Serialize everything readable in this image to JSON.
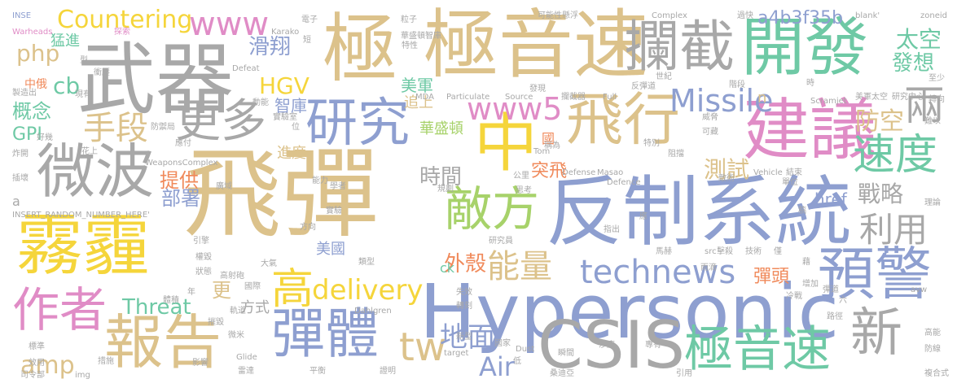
{
  "palette": {
    "tan": "#dcc28b",
    "gray": "#a8a8a8",
    "blue": "#8e9fd0",
    "green": "#a7d26a",
    "orange": "#f08a5b",
    "pink": "#e08cc6",
    "teal": "#6ec9a5",
    "yellow": "#f5d53b"
  },
  "words": [
    {
      "text": "飛彈",
      "color": "tan"
    },
    {
      "text": "極音速",
      "color": "tan"
    },
    {
      "text": "武器",
      "color": "gray"
    },
    {
      "text": "反制系統",
      "color": "blue"
    },
    {
      "text": "Hypersonic",
      "color": "blue"
    },
    {
      "text": "霧霾",
      "color": "yellow"
    },
    {
      "text": "開發",
      "color": "teal"
    },
    {
      "text": "極",
      "color": "tan"
    },
    {
      "text": "攔截",
      "color": "gray"
    },
    {
      "text": "建議",
      "color": "pink"
    },
    {
      "text": "微波",
      "color": "gray"
    },
    {
      "text": "飛行",
      "color": "tan"
    },
    {
      "text": "研究",
      "color": "blue"
    },
    {
      "text": "更多",
      "color": "gray"
    },
    {
      "text": "中",
      "color": "yellow"
    },
    {
      "text": "報告",
      "color": "tan"
    },
    {
      "text": "預警",
      "color": "blue"
    },
    {
      "text": "CSIS",
      "color": "gray"
    },
    {
      "text": "彈體",
      "color": "blue"
    },
    {
      "text": "新",
      "color": "gray"
    },
    {
      "text": "敵方",
      "color": "green"
    },
    {
      "text": "速度",
      "color": "teal"
    },
    {
      "text": "極音速",
      "color": "teal"
    },
    {
      "text": "technews",
      "color": "blue"
    },
    {
      "text": "能量",
      "color": "tan"
    },
    {
      "text": "作者",
      "color": "pink"
    },
    {
      "text": "www5",
      "color": "pink"
    },
    {
      "text": "www",
      "color": "pink"
    },
    {
      "text": "Countering",
      "color": "yellow"
    },
    {
      "text": "手段",
      "color": "tan"
    },
    {
      "text": "利用",
      "color": "gray"
    },
    {
      "text": "兩",
      "color": "gray"
    },
    {
      "text": "高",
      "color": "yellow"
    },
    {
      "text": "delivery",
      "color": "yellow"
    },
    {
      "text": "HGV",
      "color": "yellow"
    },
    {
      "text": "Missile",
      "color": "blue"
    },
    {
      "text": "tw",
      "color": "tan"
    },
    {
      "text": "地面",
      "color": "blue"
    },
    {
      "text": "Air",
      "color": "blue"
    },
    {
      "text": "php",
      "color": "tan"
    },
    {
      "text": "cb",
      "color": "teal"
    },
    {
      "text": "Threat",
      "color": "teal"
    },
    {
      "text": "amp",
      "color": "tan"
    },
    {
      "text": "外殼",
      "color": "orange"
    },
    {
      "text": "防空",
      "color": "tan"
    },
    {
      "text": "時間",
      "color": "gray"
    },
    {
      "text": "提供",
      "color": "orange"
    },
    {
      "text": "部署",
      "color": "blue"
    },
    {
      "text": "測試",
      "color": "tan"
    },
    {
      "text": "戰略",
      "color": "gray"
    },
    {
      "text": "滑翔",
      "color": "blue"
    },
    {
      "text": "美軍",
      "color": "teal"
    },
    {
      "text": "太空",
      "color": "teal"
    },
    {
      "text": "發想",
      "color": "teal"
    },
    {
      "text": "a4b3f35b",
      "color": "blue"
    },
    {
      "text": "概念",
      "color": "teal"
    },
    {
      "text": "GPI",
      "color": "teal"
    },
    {
      "text": "中俄",
      "color": "orange"
    },
    {
      "text": "猛進",
      "color": "teal"
    },
    {
      "text": "追上",
      "color": "tan"
    },
    {
      "text": "智庫",
      "color": "blue"
    },
    {
      "text": "華盛頓",
      "color": "green"
    },
    {
      "text": "突飛",
      "color": "orange"
    },
    {
      "text": "美國",
      "color": "blue"
    },
    {
      "text": "彈頭",
      "color": "orange"
    },
    {
      "text": "方式",
      "color": "gray"
    },
    {
      "text": "進度",
      "color": "tan"
    },
    {
      "text": "更",
      "color": "tan"
    },
    {
      "text": "href",
      "color": "blue"
    },
    {
      "text": "ck",
      "color": "teal"
    },
    {
      "text": "a",
      "color": "gray"
    },
    {
      "text": "n",
      "color": "tan"
    },
    {
      "text": "國",
      "color": "orange"
    },
    {
      "text": "INSE",
      "color": "blue"
    },
    {
      "text": "Warheads",
      "color": "pink"
    },
    {
      "text": "探索",
      "color": "pink"
    },
    {
      "text": "Karako",
      "color": "gray"
    },
    {
      "text": "電子",
      "color": "gray"
    },
    {
      "text": "粒子",
      "color": "gray"
    },
    {
      "text": "可能性",
      "color": "gray"
    },
    {
      "text": "懸浮",
      "color": "gray"
    },
    {
      "text": "Complex",
      "color": "gray"
    },
    {
      "text": "過快",
      "color": "gray"
    },
    {
      "text": "zoneid",
      "color": "gray"
    },
    {
      "text": "_blank'",
      "color": "gray"
    },
    {
      "text": "華盛頓智庫",
      "color": "gray"
    },
    {
      "text": "特性",
      "color": "gray"
    },
    {
      "text": "衝壓",
      "color": "gray"
    },
    {
      "text": "Defeat",
      "color": "gray"
    },
    {
      "text": "世紀",
      "color": "gray"
    },
    {
      "text": "反彈道",
      "color": "gray"
    },
    {
      "text": "Scramjet",
      "color": "gray"
    },
    {
      "text": "研究中心",
      "color": "gray"
    },
    {
      "text": "美軍太空",
      "color": "gray"
    },
    {
      "text": "MDA",
      "color": "gray"
    },
    {
      "text": "Particulate",
      "color": "gray"
    },
    {
      "text": "Source",
      "color": "gray"
    },
    {
      "text": "Full",
      "color": "gray"
    },
    {
      "text": "攔截器",
      "color": "gray"
    },
    {
      "text": "動能",
      "color": "gray"
    },
    {
      "text": "實驗室",
      "color": "gray"
    },
    {
      "text": "WeaponsComplex",
      "color": "gray"
    },
    {
      "text": "Defense",
      "color": "gray"
    },
    {
      "text": "Masao",
      "color": "gray"
    },
    {
      "text": "Vehicle",
      "color": "gray"
    },
    {
      "text": "Defence",
      "color": "gray"
    },
    {
      "text": "INSERT_RANDOM_NUMBER_HERE'",
      "color": "gray"
    },
    {
      "text": "Tom",
      "color": "gray"
    },
    {
      "text": "Dahlgren",
      "color": "gray"
    },
    {
      "text": "Dust",
      "color": "gray"
    },
    {
      "text": "target",
      "color": "gray"
    },
    {
      "text": "Glide",
      "color": "gray"
    },
    {
      "text": "img",
      "color": "gray"
    },
    {
      "text": "src",
      "color": "gray"
    },
    {
      "text": "avw",
      "color": "gray"
    },
    {
      "text": "桑迪亞",
      "color": "gray"
    },
    {
      "text": "司令部",
      "color": "gray"
    },
    {
      "text": "複合式",
      "color": "gray"
    },
    {
      "text": "製造出",
      "color": "gray"
    },
    {
      "text": "炸開",
      "color": "gray"
    },
    {
      "text": "好幾",
      "color": "gray"
    },
    {
      "text": "插壞",
      "color": "gray"
    },
    {
      "text": "標準",
      "color": "gray"
    },
    {
      "text": "效用",
      "color": "gray"
    },
    {
      "text": "雷達",
      "color": "gray"
    },
    {
      "text": "平衡",
      "color": "gray"
    },
    {
      "text": "證明",
      "color": "gray"
    },
    {
      "text": "專有",
      "color": "gray"
    },
    {
      "text": "引用",
      "color": "gray"
    },
    {
      "text": "高能",
      "color": "gray"
    },
    {
      "text": "防線",
      "color": "gray"
    },
    {
      "text": "理論",
      "color": "gray"
    },
    {
      "text": "難以",
      "color": "gray"
    },
    {
      "text": "轉向",
      "color": "gray"
    },
    {
      "text": "至少",
      "color": "gray"
    },
    {
      "text": "增加",
      "color": "gray"
    },
    {
      "text": "彈道",
      "color": "gray"
    },
    {
      "text": "冷戰",
      "color": "gray"
    },
    {
      "text": "路徑",
      "color": "gray"
    },
    {
      "text": "六",
      "color": "gray"
    },
    {
      "text": "馬赫",
      "color": "gray"
    },
    {
      "text": "擊殺",
      "color": "gray"
    },
    {
      "text": "雨滴",
      "color": "gray"
    },
    {
      "text": "技術",
      "color": "gray"
    },
    {
      "text": "僅",
      "color": "gray"
    },
    {
      "text": "指出",
      "color": "gray"
    },
    {
      "text": "研究員",
      "color": "gray"
    },
    {
      "text": "實驗",
      "color": "gray"
    },
    {
      "text": "方向",
      "color": "gray"
    },
    {
      "text": "廣域",
      "color": "gray"
    },
    {
      "text": "學者",
      "color": "gray"
    },
    {
      "text": "能力",
      "color": "gray"
    },
    {
      "text": "規劃",
      "color": "gray"
    },
    {
      "text": "思考",
      "color": "gray"
    },
    {
      "text": "公里",
      "color": "gray"
    },
    {
      "text": "敵術",
      "color": "gray"
    },
    {
      "text": "單位",
      "color": "gray"
    },
    {
      "text": "結束",
      "color": "gray"
    },
    {
      "text": "阻擋",
      "color": "gray"
    },
    {
      "text": "特別",
      "color": "gray"
    },
    {
      "text": "威脅",
      "color": "gray"
    },
    {
      "text": "可藏",
      "color": "gray"
    },
    {
      "text": "稱為",
      "color": "gray"
    },
    {
      "text": "階段",
      "color": "gray"
    },
    {
      "text": "引擎",
      "color": "gray"
    },
    {
      "text": "權毀",
      "color": "gray"
    },
    {
      "text": "狀態",
      "color": "gray"
    },
    {
      "text": "高射砲",
      "color": "gray"
    },
    {
      "text": "大氣",
      "color": "gray"
    },
    {
      "text": "國際",
      "color": "gray"
    },
    {
      "text": "類型",
      "color": "gray"
    },
    {
      "text": "年",
      "color": "gray"
    },
    {
      "text": "體積",
      "color": "gray"
    },
    {
      "text": "軌道",
      "color": "gray"
    },
    {
      "text": "摧毀",
      "color": "gray"
    },
    {
      "text": "微米",
      "color": "gray"
    },
    {
      "text": "措施",
      "color": "gray"
    },
    {
      "text": "影響",
      "color": "gray"
    },
    {
      "text": "瞬間",
      "color": "gray"
    },
    {
      "text": "沙塵",
      "color": "gray"
    },
    {
      "text": "國家",
      "color": "gray"
    },
    {
      "text": "新型",
      "color": "gray"
    },
    {
      "text": "失效",
      "color": "gray"
    },
    {
      "text": "轉刻",
      "color": "gray"
    },
    {
      "text": "低",
      "color": "gray"
    },
    {
      "text": "防禦局",
      "color": "gray"
    },
    {
      "text": "應付",
      "color": "gray"
    },
    {
      "text": "花上",
      "color": "gray"
    },
    {
      "text": "位",
      "color": "gray"
    },
    {
      "text": "現有",
      "color": "gray"
    },
    {
      "text": "型",
      "color": "gray"
    },
    {
      "text": "短",
      "color": "gray"
    },
    {
      "text": "發現",
      "color": "gray"
    },
    {
      "text": "應",
      "color": "gray"
    },
    {
      "text": "時",
      "color": "gray"
    },
    {
      "text": "稿",
      "color": "gray"
    },
    {
      "text": "藉",
      "color": "gray"
    }
  ]
}
